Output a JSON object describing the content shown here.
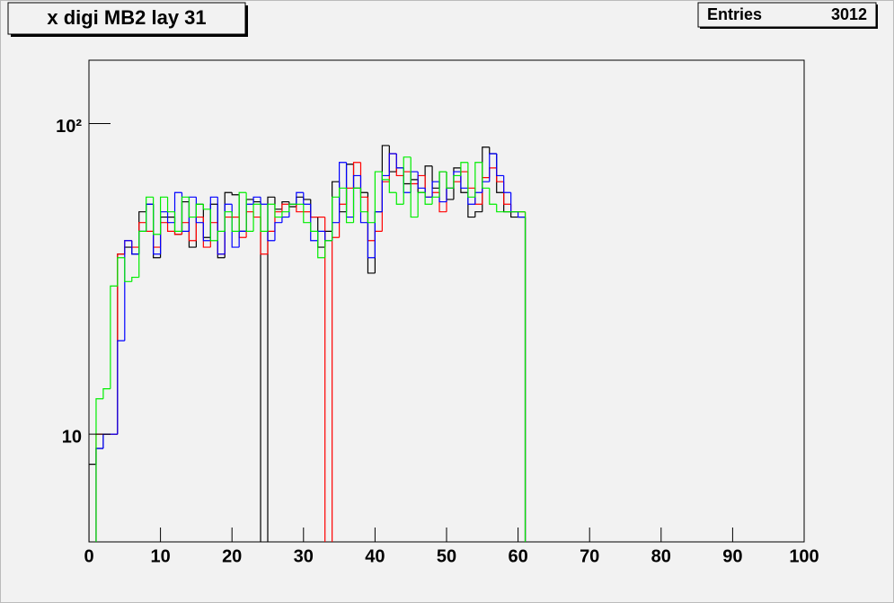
{
  "chart_data": {
    "type": "histogram",
    "title": "x digi MB2 lay 31",
    "stats": {
      "label": "Entries",
      "value": 3012
    },
    "log_y": true,
    "xlim": [
      0,
      100
    ],
    "ylim": [
      4.5,
      160
    ],
    "xticks": [
      0,
      10,
      20,
      30,
      40,
      50,
      60,
      70,
      80,
      90,
      100
    ],
    "yticks": [
      10,
      {
        "value": 100,
        "label": "10²"
      }
    ],
    "bins": [
      0,
      1,
      2,
      3,
      4,
      5,
      6,
      7,
      8,
      9,
      10,
      11,
      12,
      13,
      14,
      15,
      16,
      17,
      18,
      19,
      20,
      21,
      22,
      23,
      24,
      25,
      26,
      27,
      28,
      29,
      30,
      31,
      32,
      33,
      34,
      35,
      36,
      37,
      38,
      39,
      40,
      41,
      42,
      43,
      44,
      45,
      46,
      47,
      48,
      49,
      50,
      51,
      52,
      53,
      54,
      55,
      56,
      57,
      58,
      59,
      60,
      61,
      62,
      63,
      64,
      65,
      66,
      67,
      68,
      69,
      70,
      71,
      72,
      73,
      74,
      75,
      76,
      77,
      78,
      79,
      80,
      81,
      82,
      83,
      84,
      85,
      86,
      87,
      88,
      89,
      90,
      91,
      92,
      93,
      94,
      95,
      96,
      97,
      98,
      99,
      100
    ],
    "series": [
      {
        "color": "#000000",
        "values": [
          8,
          9,
          10,
          10,
          38,
          40,
          38,
          52,
          55,
          37,
          50,
          50,
          44,
          56,
          40,
          55,
          43,
          55,
          37,
          60,
          59,
          45,
          57,
          56,
          0,
          58,
          53,
          56,
          54,
          58,
          57,
          50,
          40,
          45,
          65,
          52,
          74,
          62,
          60,
          33,
          52,
          85,
          70,
          72,
          64,
          66,
          60,
          73,
          62,
          70,
          57,
          72,
          60,
          50,
          52,
          84,
          80,
          60,
          52,
          50,
          50,
          0,
          0,
          0,
          0,
          0,
          0,
          0,
          0,
          0,
          0,
          0,
          0,
          0,
          0,
          0,
          0,
          0,
          0,
          0,
          0,
          0,
          0,
          0,
          0,
          0,
          0,
          0,
          0,
          0,
          0,
          0,
          0,
          0,
          0,
          0,
          0,
          0,
          0,
          0
        ]
      },
      {
        "color": "#ff0000",
        "values": [
          0,
          10,
          10,
          10,
          38,
          42,
          40,
          48,
          45,
          40,
          48,
          45,
          44,
          48,
          42,
          50,
          40,
          48,
          38,
          50,
          50,
          43,
          52,
          50,
          38,
          45,
          52,
          55,
          55,
          52,
          52,
          50,
          50,
          0,
          43,
          55,
          62,
          75,
          58,
          42,
          45,
          65,
          80,
          68,
          70,
          64,
          68,
          58,
          60,
          52,
          62,
          65,
          70,
          62,
          55,
          67,
          72,
          65,
          55,
          52,
          52,
          0,
          0,
          0,
          0,
          0,
          0,
          0,
          0,
          0,
          0,
          0,
          0,
          0,
          0,
          0,
          0,
          0,
          0,
          0,
          0,
          0,
          0,
          0,
          0,
          0,
          0,
          0,
          0,
          0,
          0,
          0,
          0,
          0,
          0,
          0,
          0,
          0,
          0,
          0
        ]
      },
      {
        "color": "#0000ff",
        "values": [
          0,
          9,
          10,
          10,
          20,
          42,
          38,
          45,
          55,
          38,
          52,
          48,
          60,
          45,
          58,
          48,
          42,
          58,
          38,
          55,
          40,
          45,
          55,
          58,
          55,
          42,
          48,
          50,
          55,
          60,
          55,
          42,
          45,
          42,
          48,
          75,
          50,
          68,
          48,
          37,
          52,
          68,
          80,
          72,
          60,
          70,
          62,
          58,
          65,
          56,
          62,
          70,
          62,
          55,
          60,
          65,
          80,
          68,
          60,
          52,
          50,
          0,
          0,
          0,
          0,
          0,
          0,
          0,
          0,
          0,
          0,
          0,
          0,
          0,
          0,
          0,
          0,
          0,
          0,
          0,
          0,
          0,
          0,
          0,
          0,
          0,
          0,
          0,
          0,
          0,
          0,
          0,
          0,
          0,
          0,
          0,
          0,
          0,
          0,
          0
        ]
      },
      {
        "color": "#00ee00",
        "values": [
          0,
          13,
          14,
          30,
          37,
          31,
          32,
          45,
          58,
          44,
          58,
          52,
          45,
          58,
          50,
          55,
          53,
          42,
          45,
          52,
          45,
          60,
          45,
          55,
          45,
          55,
          50,
          52,
          55,
          55,
          48,
          45,
          37,
          42,
          58,
          62,
          48,
          62,
          52,
          48,
          70,
          66,
          60,
          55,
          78,
          50,
          60,
          55,
          58,
          70,
          62,
          68,
          75,
          58,
          75,
          62,
          55,
          52,
          52,
          52,
          52,
          0,
          0,
          0,
          0,
          0,
          0,
          0,
          0,
          0,
          0,
          0,
          0,
          0,
          0,
          0,
          0,
          0,
          0,
          0,
          0,
          0,
          0,
          0,
          0,
          0,
          0,
          0,
          0,
          0,
          0,
          0,
          0,
          0,
          0,
          0,
          0,
          0,
          0,
          0
        ]
      }
    ]
  }
}
